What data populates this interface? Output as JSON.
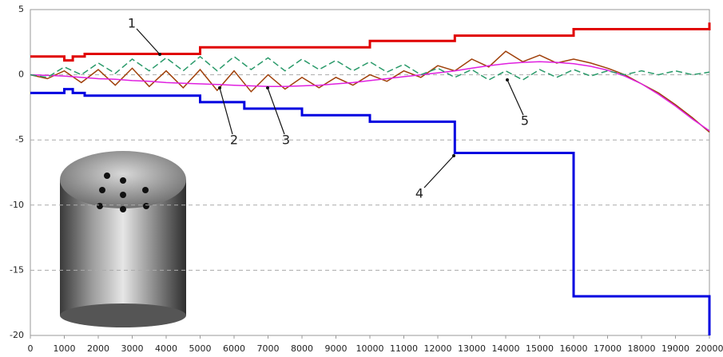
{
  "chart_data": {
    "type": "line",
    "xlim": [
      0,
      20000
    ],
    "ylim": [
      -20,
      5
    ],
    "xticks": [
      0,
      1000,
      2000,
      3000,
      4000,
      5000,
      6000,
      7000,
      8000,
      9000,
      10000,
      11000,
      12000,
      13000,
      14000,
      15000,
      16000,
      17000,
      18000,
      19000,
      20000
    ],
    "yticks": [
      5,
      0,
      -5,
      -10,
      -15,
      -20
    ],
    "grid": true,
    "annotations": [
      "1",
      "2",
      "3",
      "4",
      "5"
    ],
    "series": [
      {
        "color": "#e00000",
        "x": [
          0,
          1000,
          1000,
          1250,
          1250,
          1600,
          1600,
          5000,
          5000,
          10000,
          10000,
          12500,
          12500,
          16000,
          16000,
          20000,
          20000
        ],
        "values": [
          1.4,
          1.4,
          1.1,
          1.1,
          1.4,
          1.4,
          1.6,
          1.6,
          2.1,
          2.1,
          2.6,
          2.6,
          3.0,
          3.0,
          3.5,
          3.5,
          4.0
        ]
      },
      {
        "color": "#0000e0",
        "x": [
          0,
          1000,
          1000,
          1250,
          1250,
          1600,
          1600,
          5000,
          5000,
          6300,
          6300,
          8000,
          8000,
          10000,
          10000,
          12500,
          12500,
          16000,
          16000,
          20000,
          20000
        ],
        "values": [
          -1.4,
          -1.4,
          -1.1,
          -1.1,
          -1.4,
          -1.4,
          -1.6,
          -1.6,
          -2.1,
          -2.1,
          -2.6,
          -2.6,
          -3.1,
          -3.1,
          -3.6,
          -3.6,
          -6,
          -6,
          -17,
          -17,
          -20
        ]
      },
      {
        "color": "#a0400a",
        "x": [
          0,
          500,
          1000,
          1500,
          2000,
          2500,
          3000,
          3500,
          4000,
          4500,
          5000,
          5500,
          6000,
          6500,
          7000,
          7500,
          8000,
          8500,
          9000,
          9500,
          10000,
          10500,
          11000,
          11500,
          12000,
          12500,
          13000,
          13500,
          14000,
          14500,
          15000,
          15500,
          16000,
          16500,
          17000,
          17500,
          18000,
          18500,
          19000,
          19500,
          20000
        ],
        "values": [
          0,
          -0.3,
          0.3,
          -0.6,
          0.4,
          -0.8,
          0.5,
          -0.9,
          0.3,
          -1.0,
          0.4,
          -1.2,
          0.3,
          -1.3,
          0,
          -1.1,
          -0.2,
          -1.0,
          -0.2,
          -0.8,
          0,
          -0.5,
          0.3,
          -0.2,
          0.7,
          0.3,
          1.2,
          0.6,
          1.8,
          1.0,
          1.5,
          0.9,
          1.2,
          0.9,
          0.5,
          0.0,
          -0.7,
          -1.4,
          -2.3,
          -3.3,
          -4.4
        ]
      },
      {
        "color": "#e020e0",
        "x": [
          0,
          500,
          1000,
          1500,
          2000,
          2500,
          3000,
          3500,
          4000,
          4500,
          5000,
          5500,
          6000,
          6500,
          7000,
          7500,
          8000,
          8500,
          9000,
          9500,
          10000,
          10500,
          11000,
          11500,
          12000,
          12500,
          13000,
          13500,
          14000,
          14500,
          15000,
          15500,
          16000,
          16500,
          17000,
          17500,
          18000,
          18500,
          19000,
          19500,
          20000
        ],
        "values": [
          0,
          -0.05,
          -0.1,
          -0.2,
          -0.3,
          -0.35,
          -0.45,
          -0.5,
          -0.6,
          -0.65,
          -0.7,
          -0.75,
          -0.8,
          -0.85,
          -0.9,
          -0.9,
          -0.85,
          -0.8,
          -0.7,
          -0.6,
          -0.45,
          -0.3,
          -0.15,
          0,
          0.15,
          0.3,
          0.5,
          0.7,
          0.85,
          0.95,
          1.0,
          0.95,
          0.85,
          0.65,
          0.35,
          -0.1,
          -0.7,
          -1.5,
          -2.4,
          -3.4,
          -4.3
        ]
      },
      {
        "color": "#2a9a6a",
        "dashed": true,
        "x": [
          0,
          500,
          1000,
          1500,
          2000,
          2500,
          3000,
          3500,
          4000,
          4500,
          5000,
          5500,
          6000,
          6500,
          7000,
          7500,
          8000,
          8500,
          9000,
          9500,
          10000,
          10500,
          11000,
          11500,
          12000,
          12500,
          13000,
          13500,
          14000,
          14500,
          15000,
          15500,
          16000,
          16500,
          17000,
          17500,
          18000,
          18500,
          19000,
          19500,
          20000
        ],
        "values": [
          0,
          -0.2,
          0.6,
          0,
          0.9,
          0.1,
          1.2,
          0.3,
          1.3,
          0.3,
          1.4,
          0.3,
          1.4,
          0.4,
          1.3,
          0.3,
          1.2,
          0.4,
          1.1,
          0.3,
          1.0,
          0.2,
          0.8,
          0,
          0.5,
          -0.2,
          0.4,
          -0.4,
          0.3,
          -0.4,
          0.4,
          -0.2,
          0.4,
          -0.1,
          0.3,
          0,
          0.3,
          0,
          0.3,
          0,
          0.2
        ]
      }
    ]
  }
}
